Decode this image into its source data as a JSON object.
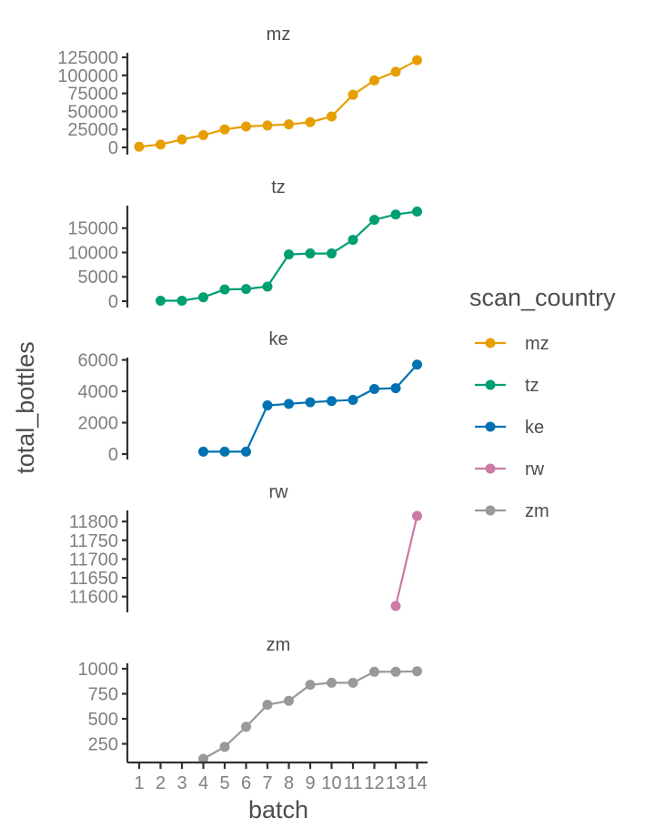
{
  "chart_data": {
    "type": "line",
    "facet_by": "scan_country",
    "xlabel": "batch",
    "ylabel": "total_bottles",
    "x_ticks": [
      1,
      2,
      3,
      4,
      5,
      6,
      7,
      8,
      9,
      10,
      11,
      12,
      13,
      14
    ],
    "xlim": [
      0.5,
      14.5
    ],
    "legend": {
      "title": "scan_country",
      "position": "right",
      "entries": [
        {
          "name": "mz",
          "color": "#E69F00"
        },
        {
          "name": "tz",
          "color": "#009E73"
        },
        {
          "name": "ke",
          "color": "#0072B2"
        },
        {
          "name": "rw",
          "color": "#CC79A7"
        },
        {
          "name": "zm",
          "color": "#999999"
        }
      ]
    },
    "panels": [
      {
        "name": "mz",
        "color": "#E69F00",
        "ylim": [
          0,
          125000
        ],
        "y_ticks": [
          0,
          25000,
          50000,
          75000,
          100000,
          125000
        ],
        "x": [
          1,
          2,
          3,
          4,
          5,
          6,
          7,
          8,
          9,
          10,
          11,
          12,
          13,
          14
        ],
        "values": [
          1000,
          4000,
          11000,
          17000,
          25000,
          29000,
          30500,
          32000,
          35000,
          43000,
          73000,
          93000,
          105000,
          121000
        ]
      },
      {
        "name": "tz",
        "color": "#009E73",
        "ylim": [
          0,
          18500
        ],
        "y_ticks": [
          0,
          5000,
          10000,
          15000
        ],
        "x": [
          2,
          3,
          4,
          5,
          6,
          7,
          8,
          9,
          10,
          11,
          12,
          13,
          14
        ],
        "values": [
          100,
          100,
          800,
          2400,
          2500,
          3000,
          9600,
          9800,
          9800,
          12600,
          16700,
          17800,
          18400
        ]
      },
      {
        "name": "ke",
        "color": "#0072B2",
        "ylim": [
          0,
          5800
        ],
        "y_ticks": [
          0,
          2000,
          4000,
          6000
        ],
        "x": [
          4,
          5,
          6,
          7,
          8,
          9,
          10,
          11,
          12,
          13,
          14
        ],
        "values": [
          150,
          150,
          150,
          3100,
          3200,
          3300,
          3380,
          3450,
          4150,
          4200,
          5700
        ]
      },
      {
        "name": "rw",
        "color": "#CC79A7",
        "ylim": [
          11575,
          11815
        ],
        "y_ticks": [
          11600,
          11650,
          11700,
          11750,
          11800
        ],
        "x": [
          13,
          14
        ],
        "values": [
          11575,
          11815
        ]
      },
      {
        "name": "zm",
        "color": "#999999",
        "ylim": [
          100,
          1000
        ],
        "y_ticks": [
          250,
          500,
          750,
          1000
        ],
        "x": [
          4,
          5,
          6,
          7,
          8,
          9,
          10,
          11,
          12,
          13,
          14
        ],
        "values": [
          100,
          220,
          420,
          640,
          680,
          840,
          860,
          860,
          970,
          970,
          975
        ]
      }
    ]
  }
}
